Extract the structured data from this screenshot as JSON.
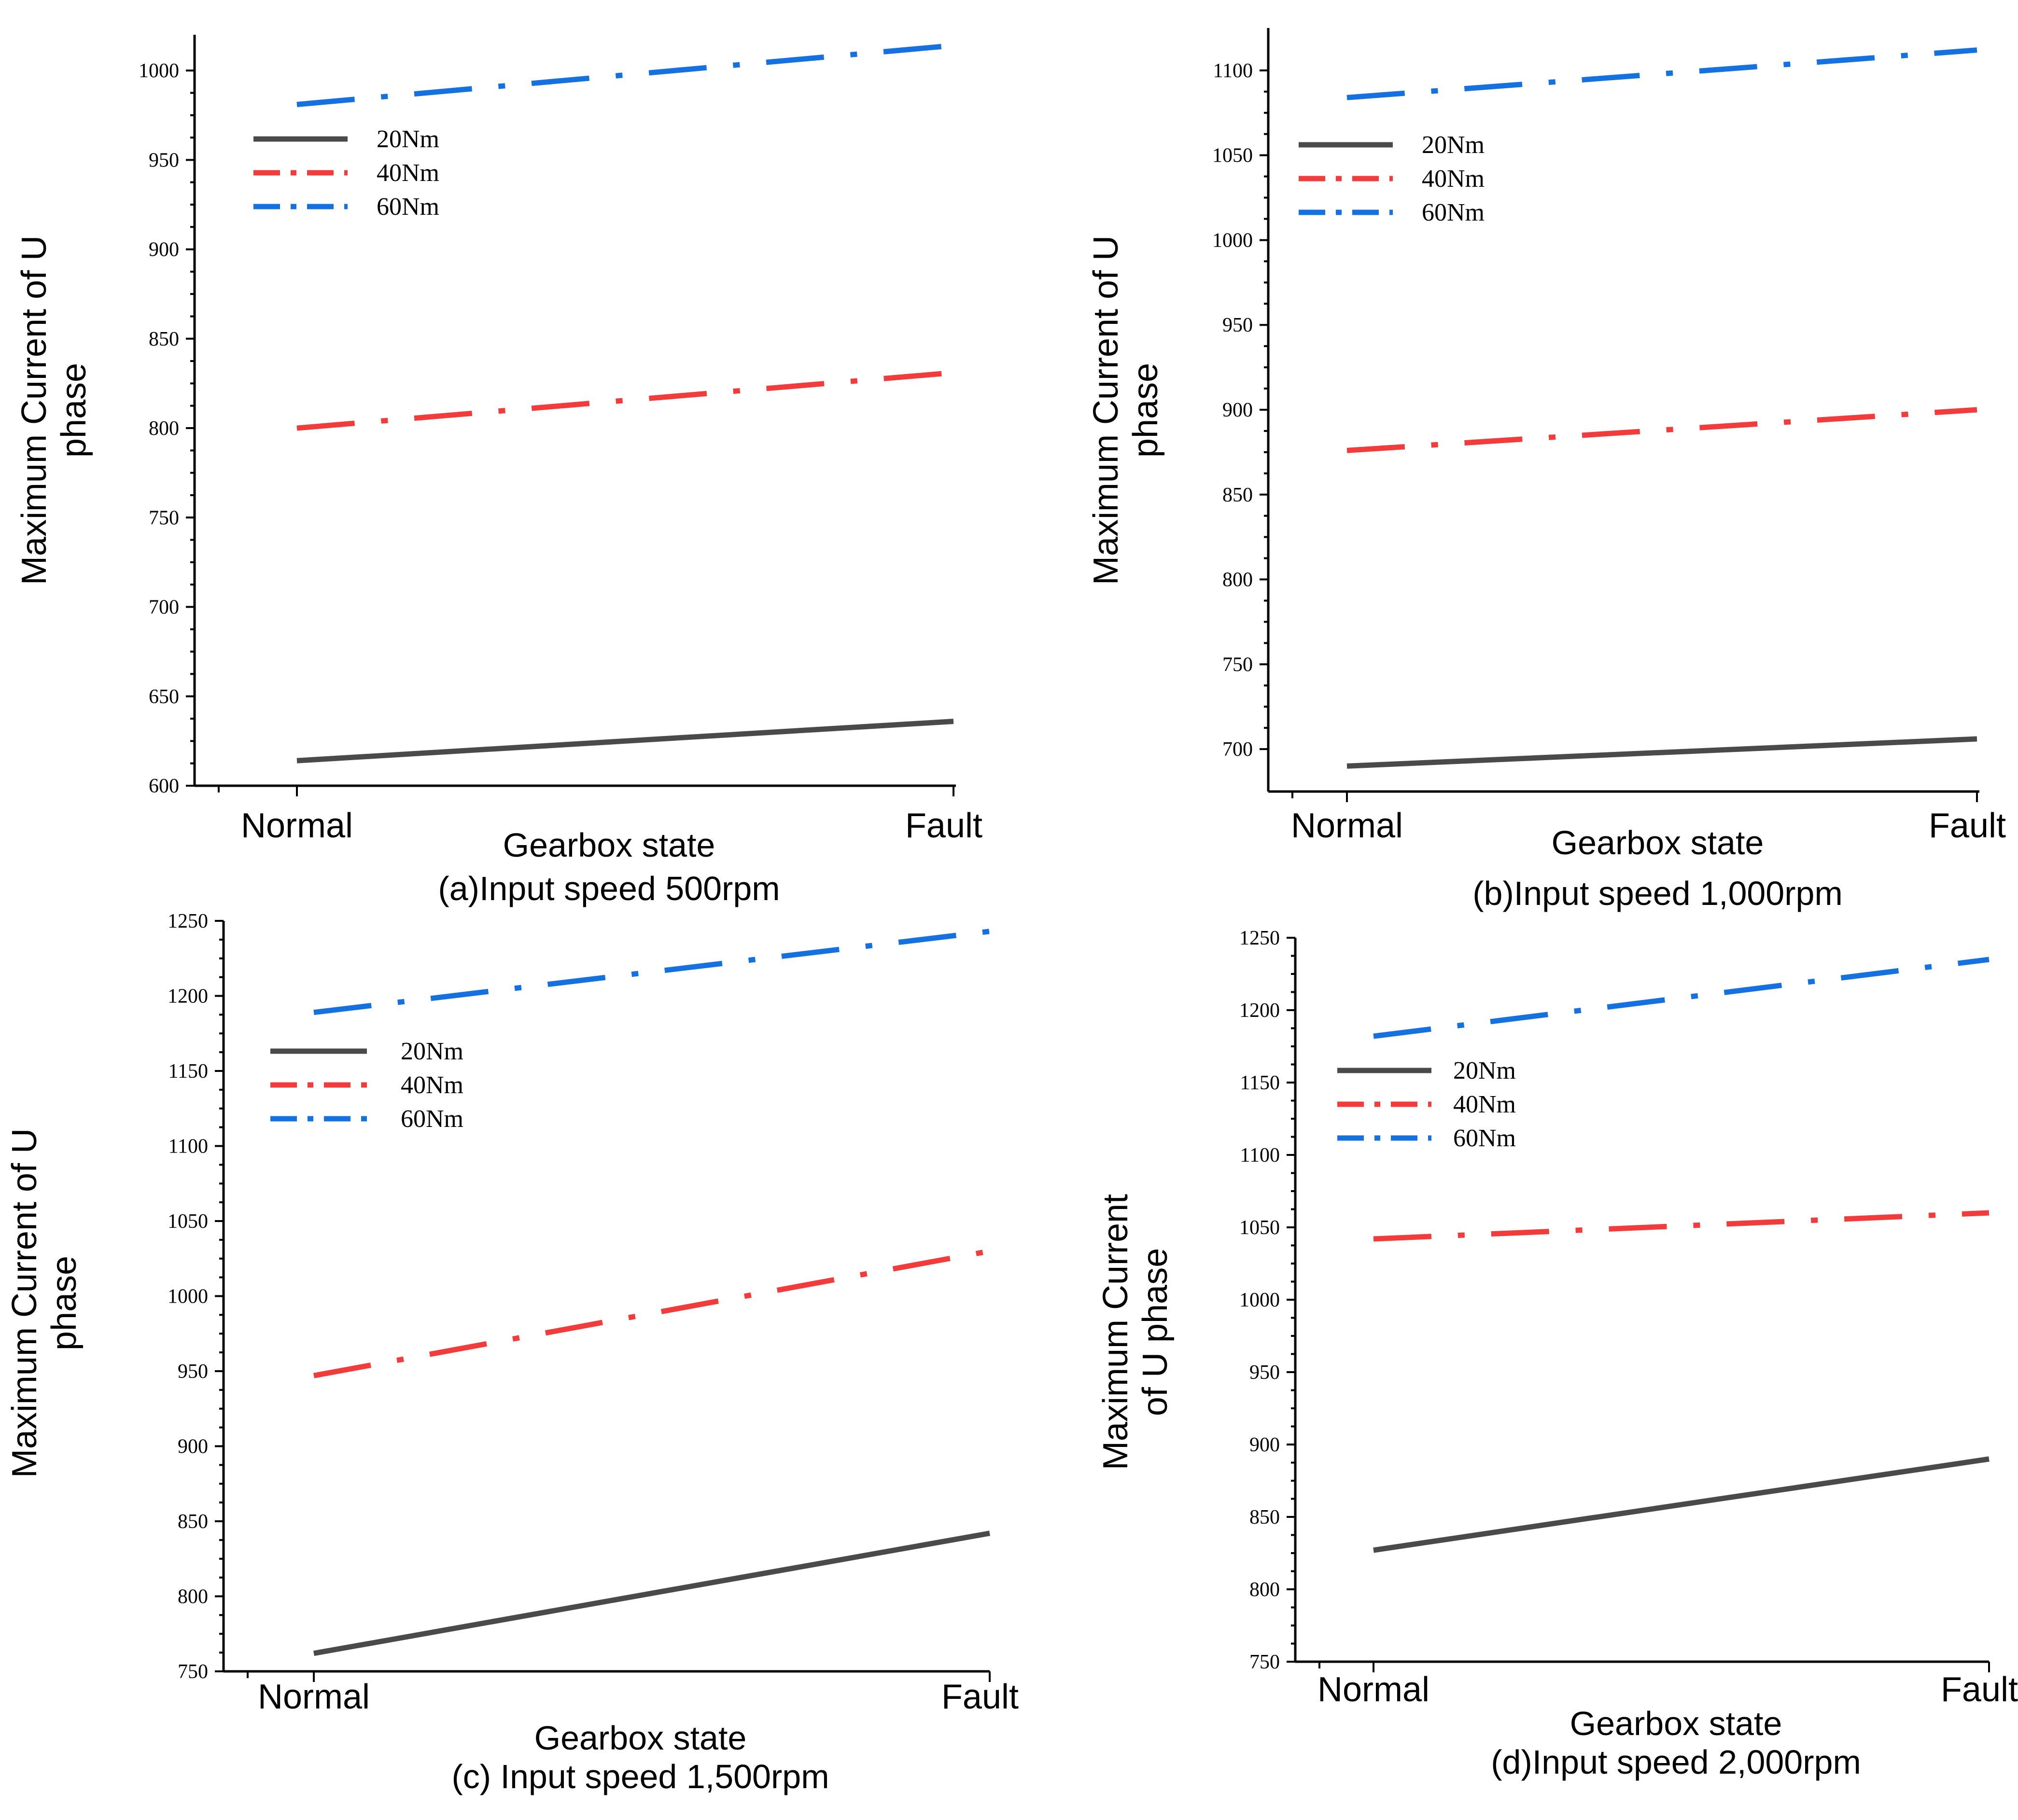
{
  "chart_data": [
    {
      "type": "line",
      "caption": "(a)Input speed 500rpm",
      "ylabel_lines": [
        "Maximum Current of U",
        "phase"
      ],
      "xlabel": "Gearbox state",
      "categories": [
        "Normal",
        "Fault"
      ],
      "ylim": [
        600,
        1020
      ],
      "yticks": [
        600,
        650,
        700,
        750,
        800,
        850,
        900,
        950,
        1000
      ],
      "series": [
        {
          "name": "20Nm",
          "values": [
            614,
            636
          ],
          "color": "#4a4a4a",
          "style": "solid"
        },
        {
          "name": "40Nm",
          "values": [
            800,
            831
          ],
          "color": "#f23b3b",
          "style": "dashdot"
        },
        {
          "name": "60Nm",
          "values": [
            981,
            1014
          ],
          "color": "#1570e0",
          "style": "dashdot"
        }
      ]
    },
    {
      "type": "line",
      "caption": "(b)Input speed 1,000rpm",
      "ylabel_lines": [
        "Maximum Current of U",
        "phase"
      ],
      "xlabel": "Gearbox state",
      "categories": [
        "Normal",
        "Fault"
      ],
      "ylim": [
        675,
        1125
      ],
      "yticks": [
        700,
        750,
        800,
        850,
        900,
        950,
        1000,
        1050,
        1100
      ],
      "series": [
        {
          "name": "20Nm",
          "values": [
            690,
            706
          ],
          "color": "#4a4a4a",
          "style": "solid"
        },
        {
          "name": "40Nm",
          "values": [
            876,
            900
          ],
          "color": "#f23b3b",
          "style": "dashdot"
        },
        {
          "name": "60Nm",
          "values": [
            1084,
            1112
          ],
          "color": "#1570e0",
          "style": "dashdot"
        }
      ]
    },
    {
      "type": "line",
      "caption": "(c) Input speed 1,500rpm",
      "ylabel_lines": [
        "Maximum Current of U",
        "phase"
      ],
      "xlabel": "Gearbox state",
      "categories": [
        "Normal",
        "Fault"
      ],
      "ylim": [
        750,
        1250
      ],
      "yticks": [
        750,
        800,
        850,
        900,
        950,
        1000,
        1050,
        1100,
        1150,
        1200,
        1250
      ],
      "series": [
        {
          "name": "20Nm",
          "values": [
            762,
            842
          ],
          "color": "#4a4a4a",
          "style": "solid"
        },
        {
          "name": "40Nm",
          "values": [
            947,
            1030
          ],
          "color": "#f23b3b",
          "style": "dashdot"
        },
        {
          "name": "60Nm",
          "values": [
            1189,
            1243
          ],
          "color": "#1570e0",
          "style": "dashdot"
        }
      ]
    },
    {
      "type": "line",
      "caption": "(d)Input speed 2,000rpm",
      "ylabel_lines": [
        "Maximum Current",
        "of U phase"
      ],
      "xlabel": "Gearbox state",
      "categories": [
        "Normal",
        "Fault"
      ],
      "ylim": [
        750,
        1250
      ],
      "yticks": [
        750,
        800,
        850,
        900,
        950,
        1000,
        1050,
        1100,
        1150,
        1200,
        1250
      ],
      "series": [
        {
          "name": "20Nm",
          "values": [
            827,
            890
          ],
          "color": "#4a4a4a",
          "style": "solid"
        },
        {
          "name": "40Nm",
          "values": [
            1042,
            1060
          ],
          "color": "#f23b3b",
          "style": "dashdot"
        },
        {
          "name": "60Nm",
          "values": [
            1182,
            1235
          ],
          "color": "#1570e0",
          "style": "dashdot"
        }
      ]
    }
  ]
}
